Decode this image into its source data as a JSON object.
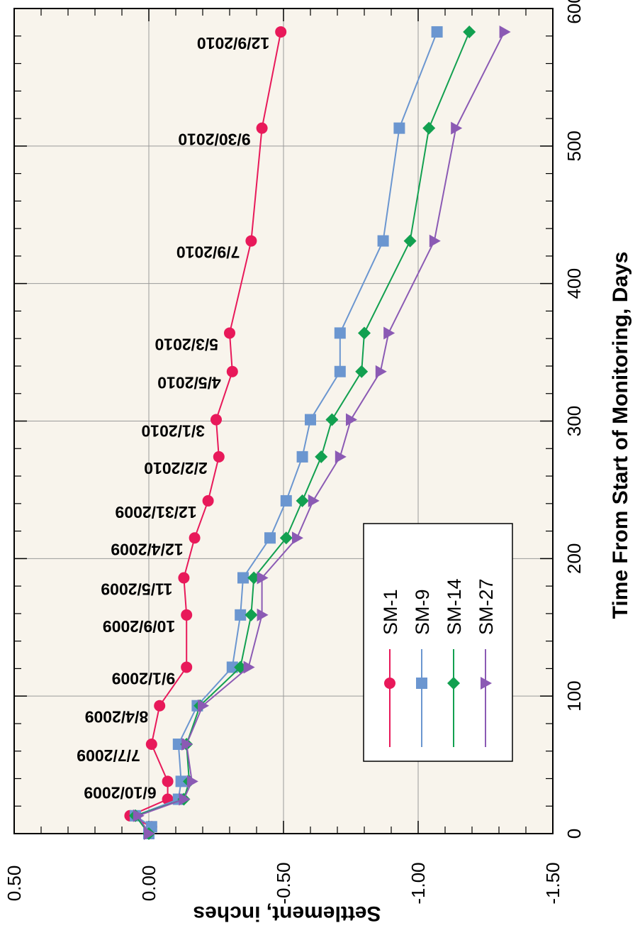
{
  "chart_data": {
    "type": "line",
    "orientation": "rotated 90 degrees clockwise",
    "xlabel": "Time From Start of Monitoring, Days",
    "ylabel": "Settlement, inches",
    "xlim": [
      0,
      600
    ],
    "ylim": [
      -1.5,
      0.5
    ],
    "x_ticks": [
      "0",
      "100",
      "200",
      "300",
      "400",
      "500",
      "600"
    ],
    "y_ticks": [
      "0.50",
      "0.00",
      "-0.50",
      "-1.00",
      "-1.50"
    ],
    "grid": true,
    "background": "#f8f4ec",
    "legend_position": "lower-left (inside plot)",
    "annotations": [
      {
        "label": "6/10/2009",
        "x": 38
      },
      {
        "label": "7/7/2009",
        "x": 65
      },
      {
        "label": "8/4/2009",
        "x": 93
      },
      {
        "label": "9/1/2009",
        "x": 121
      },
      {
        "label": "10/9/2009",
        "x": 159
      },
      {
        "label": "11/5/2009",
        "x": 186
      },
      {
        "label": "12/4/2009",
        "x": 215
      },
      {
        "label": "12/31/2009",
        "x": 242
      },
      {
        "label": "2/2/2010",
        "x": 274
      },
      {
        "label": "3/1/2010",
        "x": 301
      },
      {
        "label": "4/5/2010",
        "x": 336
      },
      {
        "label": "5/3/2010",
        "x": 364
      },
      {
        "label": "7/9/2010",
        "x": 431
      },
      {
        "label": "9/30/2010",
        "x": 513
      },
      {
        "label": "12/9/2010",
        "x": 583
      }
    ],
    "series": [
      {
        "name": "SM-1",
        "color": "#e8195a",
        "marker": "circle",
        "x": [
          0,
          5,
          13,
          25,
          38,
          65,
          93,
          121,
          159,
          186,
          215,
          242,
          274,
          301,
          336,
          364,
          431,
          513,
          583
        ],
        "y": [
          0.0,
          -0.01,
          0.07,
          -0.07,
          -0.07,
          -0.01,
          -0.04,
          -0.14,
          -0.14,
          -0.13,
          -0.17,
          -0.22,
          -0.26,
          -0.25,
          -0.31,
          -0.3,
          -0.38,
          -0.42,
          -0.49
        ]
      },
      {
        "name": "SM-9",
        "color": "#6b96d0",
        "marker": "square",
        "x": [
          0,
          5,
          13,
          25,
          38,
          65,
          93,
          121,
          159,
          186,
          215,
          242,
          274,
          301,
          336,
          364,
          431,
          513,
          583
        ],
        "y": [
          0.0,
          -0.01,
          0.05,
          -0.11,
          -0.12,
          -0.11,
          -0.18,
          -0.31,
          -0.34,
          -0.35,
          -0.45,
          -0.51,
          -0.57,
          -0.6,
          -0.71,
          -0.71,
          -0.87,
          -0.93,
          -1.07
        ]
      },
      {
        "name": "SM-14",
        "color": "#12a050",
        "marker": "diamond",
        "x": [
          0,
          13,
          25,
          38,
          65,
          93,
          121,
          159,
          186,
          215,
          242,
          274,
          301,
          336,
          364,
          431,
          513,
          583
        ],
        "y": [
          0.0,
          0.05,
          -0.13,
          -0.15,
          -0.14,
          -0.19,
          -0.34,
          -0.38,
          -0.39,
          -0.51,
          -0.57,
          -0.64,
          -0.68,
          -0.79,
          -0.8,
          -0.97,
          -1.04,
          -1.19
        ]
      },
      {
        "name": "SM-27",
        "color": "#8b5ab4",
        "marker": "triangle",
        "x": [
          0,
          13,
          25,
          38,
          65,
          93,
          121,
          159,
          186,
          215,
          242,
          274,
          301,
          336,
          364,
          431,
          513,
          583
        ],
        "y": [
          0.0,
          0.04,
          -0.13,
          -0.16,
          -0.14,
          -0.2,
          -0.37,
          -0.42,
          -0.42,
          -0.55,
          -0.61,
          -0.71,
          -0.75,
          -0.86,
          -0.89,
          -1.06,
          -1.14,
          -1.32
        ]
      }
    ]
  }
}
